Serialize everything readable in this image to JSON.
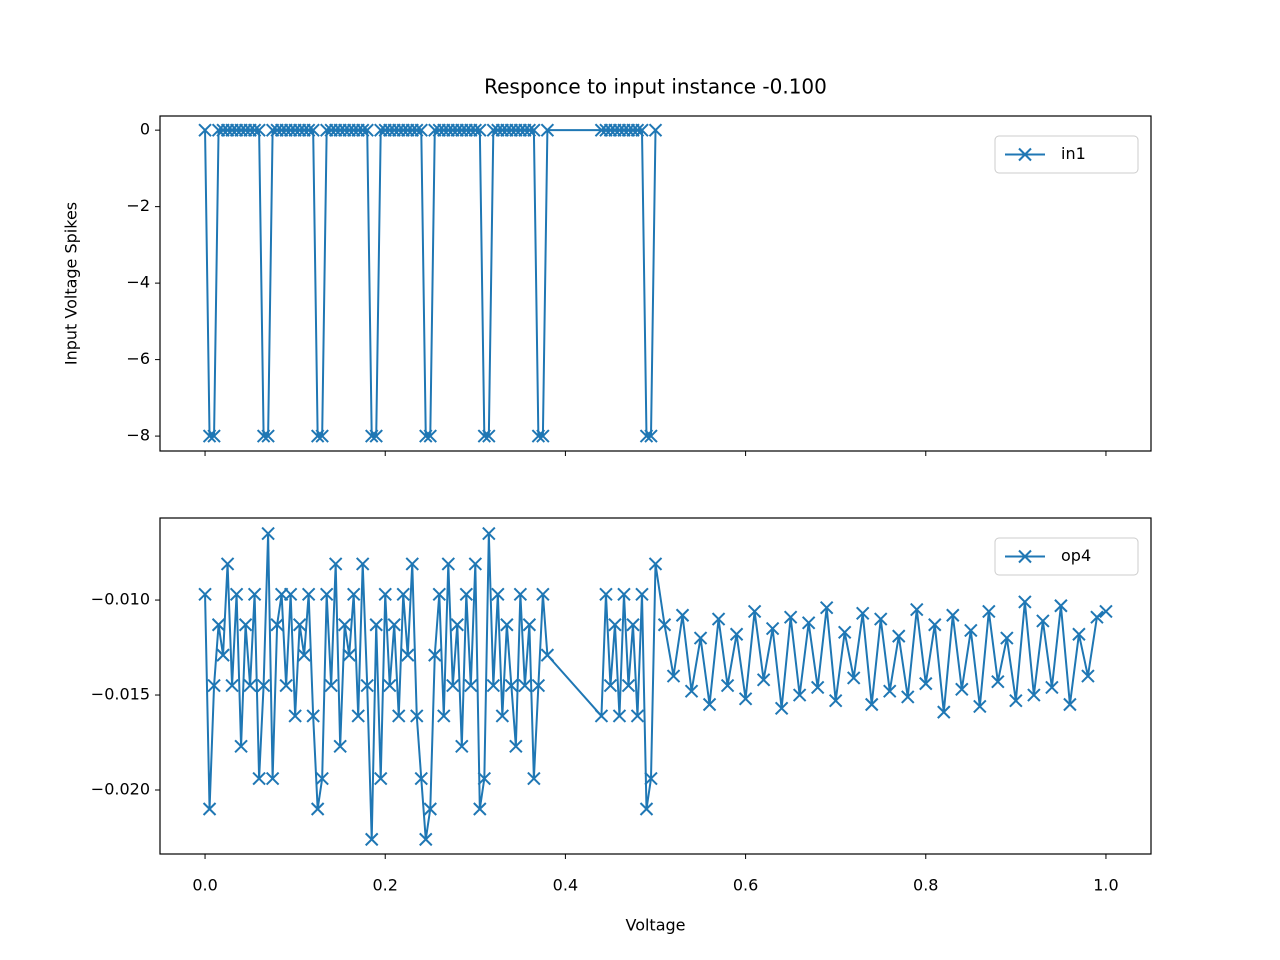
{
  "chart_data": [
    {
      "type": "line",
      "title": "Responce to input instance -0.100",
      "ylabel": "Input Voltage Spikes",
      "x": [
        0,
        0.005,
        0.01,
        0.015,
        0.02,
        0.025,
        0.03,
        0.035,
        0.04,
        0.045,
        0.05,
        0.055,
        0.06,
        0.065,
        0.07,
        0.075,
        0.08,
        0.085,
        0.09,
        0.095,
        0.1,
        0.105,
        0.11,
        0.115,
        0.12,
        0.125,
        0.13,
        0.135,
        0.14,
        0.145,
        0.15,
        0.155,
        0.16,
        0.165,
        0.17,
        0.175,
        0.18,
        0.185,
        0.19,
        0.195,
        0.2,
        0.205,
        0.21,
        0.215,
        0.22,
        0.225,
        0.23,
        0.235,
        0.24,
        0.245,
        0.25,
        0.255,
        0.26,
        0.265,
        0.27,
        0.275,
        0.28,
        0.285,
        0.29,
        0.295,
        0.3,
        0.305,
        0.31,
        0.315,
        0.32,
        0.325,
        0.33,
        0.335,
        0.34,
        0.345,
        0.35,
        0.355,
        0.36,
        0.365,
        0.37,
        0.375,
        0.38,
        0.44,
        0.445,
        0.45,
        0.455,
        0.46,
        0.465,
        0.47,
        0.475,
        0.48,
        0.485,
        0.49,
        0.495,
        0.5
      ],
      "series": [
        {
          "name": "in1",
          "color": "#1f77b4",
          "marker": "x",
          "values": [
            0,
            -8,
            -8,
            0,
            0,
            0,
            0,
            0,
            0,
            0,
            0,
            0,
            0,
            -8,
            -8,
            0,
            0,
            0,
            0,
            0,
            0,
            0,
            0,
            0,
            0,
            -8,
            -8,
            0,
            0,
            0,
            0,
            0,
            0,
            0,
            0,
            0,
            0,
            -8,
            -8,
            0,
            0,
            0,
            0,
            0,
            0,
            0,
            0,
            0,
            0,
            -8,
            -8,
            0,
            0,
            0,
            0,
            0,
            0,
            0,
            0,
            0,
            0,
            0,
            -8,
            -8,
            0,
            0,
            0,
            0,
            0,
            0,
            0,
            0,
            0,
            0,
            -8,
            -8,
            0,
            0,
            0,
            0,
            0,
            0,
            0,
            0,
            0,
            0,
            0,
            -8,
            -8,
            0
          ]
        }
      ],
      "xlim": [
        -0.05,
        1.05
      ],
      "ylim": [
        -8.39,
        0.37
      ],
      "xticks": [
        0,
        0.2,
        0.4,
        0.6,
        0.8,
        1.0
      ],
      "yticks": [
        {
          "value": 0,
          "label": "0"
        },
        {
          "value": -2,
          "label": "−2"
        },
        {
          "value": -4,
          "label": "−4"
        },
        {
          "value": -6,
          "label": "−6"
        },
        {
          "value": -8,
          "label": "−8"
        }
      ],
      "legend": "upper right"
    },
    {
      "type": "line",
      "xlabel": "Voltage",
      "x": [
        0,
        0.005,
        0.01,
        0.015,
        0.02,
        0.025,
        0.03,
        0.035,
        0.04,
        0.045,
        0.05,
        0.055,
        0.06,
        0.065,
        0.07,
        0.075,
        0.08,
        0.085,
        0.09,
        0.095,
        0.1,
        0.105,
        0.11,
        0.115,
        0.12,
        0.125,
        0.13,
        0.135,
        0.14,
        0.145,
        0.15,
        0.155,
        0.16,
        0.165,
        0.17,
        0.175,
        0.18,
        0.185,
        0.19,
        0.195,
        0.2,
        0.205,
        0.21,
        0.215,
        0.22,
        0.225,
        0.23,
        0.235,
        0.24,
        0.245,
        0.25,
        0.255,
        0.26,
        0.265,
        0.27,
        0.275,
        0.28,
        0.285,
        0.29,
        0.295,
        0.3,
        0.305,
        0.31,
        0.315,
        0.32,
        0.325,
        0.33,
        0.335,
        0.34,
        0.345,
        0.35,
        0.355,
        0.36,
        0.365,
        0.37,
        0.375,
        0.38,
        0.44,
        0.445,
        0.45,
        0.455,
        0.46,
        0.465,
        0.47,
        0.475,
        0.48,
        0.485,
        0.49,
        0.495,
        0.5,
        0.51,
        0.52,
        0.53,
        0.54,
        0.55,
        0.56,
        0.57,
        0.58,
        0.59,
        0.6,
        0.61,
        0.62,
        0.63,
        0.64,
        0.65,
        0.66,
        0.67,
        0.68,
        0.69,
        0.7,
        0.71,
        0.72,
        0.73,
        0.74,
        0.75,
        0.76,
        0.77,
        0.78,
        0.79,
        0.8,
        0.81,
        0.82,
        0.83,
        0.84,
        0.85,
        0.86,
        0.87,
        0.88,
        0.89,
        0.9,
        0.91,
        0.92,
        0.93,
        0.94,
        0.95,
        0.96,
        0.97,
        0.98,
        0.99,
        1.0
      ],
      "series": [
        {
          "name": "op4",
          "color": "#1f77b4",
          "marker": "x",
          "values": [
            -0.0097,
            -0.021,
            -0.0145,
            -0.0113,
            -0.0129,
            -0.0081,
            -0.0145,
            -0.0097,
            -0.0177,
            -0.0113,
            -0.0145,
            -0.0097,
            -0.0194,
            -0.0145,
            -0.0065,
            -0.0194,
            -0.0113,
            -0.0097,
            -0.0145,
            -0.0097,
            -0.0161,
            -0.0113,
            -0.0129,
            -0.0097,
            -0.0161,
            -0.021,
            -0.0194,
            -0.0097,
            -0.0145,
            -0.0081,
            -0.0177,
            -0.0113,
            -0.0129,
            -0.0097,
            -0.0161,
            -0.0081,
            -0.0145,
            -0.0226,
            -0.0113,
            -0.0194,
            -0.0097,
            -0.0145,
            -0.0113,
            -0.0161,
            -0.0097,
            -0.0129,
            -0.0081,
            -0.0161,
            -0.0194,
            -0.0226,
            -0.021,
            -0.0129,
            -0.0097,
            -0.0161,
            -0.0081,
            -0.0145,
            -0.0113,
            -0.0177,
            -0.0097,
            -0.0145,
            -0.0081,
            -0.021,
            -0.0194,
            -0.0065,
            -0.0145,
            -0.0097,
            -0.0161,
            -0.0113,
            -0.0145,
            -0.0177,
            -0.0097,
            -0.0145,
            -0.0113,
            -0.0194,
            -0.0145,
            -0.0097,
            -0.0129,
            -0.0161,
            -0.0097,
            -0.0145,
            -0.0113,
            -0.0161,
            -0.0097,
            -0.0145,
            -0.0113,
            -0.0161,
            -0.0097,
            -0.021,
            -0.0194,
            -0.0081,
            -0.0113,
            -0.014,
            -0.0108,
            -0.0148,
            -0.012,
            -0.0155,
            -0.011,
            -0.0145,
            -0.0118,
            -0.0152,
            -0.0106,
            -0.0142,
            -0.0115,
            -0.0157,
            -0.0109,
            -0.015,
            -0.0112,
            -0.0146,
            -0.0104,
            -0.0153,
            -0.0117,
            -0.0141,
            -0.0107,
            -0.0155,
            -0.011,
            -0.0148,
            -0.0119,
            -0.0151,
            -0.0105,
            -0.0144,
            -0.0113,
            -0.0159,
            -0.0108,
            -0.0147,
            -0.0116,
            -0.0156,
            -0.0106,
            -0.0143,
            -0.012,
            -0.0153,
            -0.0101,
            -0.015,
            -0.0111,
            -0.0146,
            -0.0103,
            -0.0155,
            -0.0118,
            -0.014,
            -0.0109,
            -0.0106
          ]
        }
      ],
      "xlim": [
        -0.05,
        1.05
      ],
      "ylim": [
        -0.02337,
        -0.00568
      ],
      "xticks": [
        {
          "value": 0,
          "label": "0.0"
        },
        {
          "value": 0.2,
          "label": "0.2"
        },
        {
          "value": 0.4,
          "label": "0.4"
        },
        {
          "value": 0.6,
          "label": "0.6"
        },
        {
          "value": 0.8,
          "label": "0.8"
        },
        {
          "value": 1.0,
          "label": "1.0"
        }
      ],
      "yticks": [
        {
          "value": -0.01,
          "label": "−0.010"
        },
        {
          "value": -0.015,
          "label": "−0.015"
        },
        {
          "value": -0.02,
          "label": "−0.020"
        }
      ],
      "legend": "upper right"
    }
  ]
}
